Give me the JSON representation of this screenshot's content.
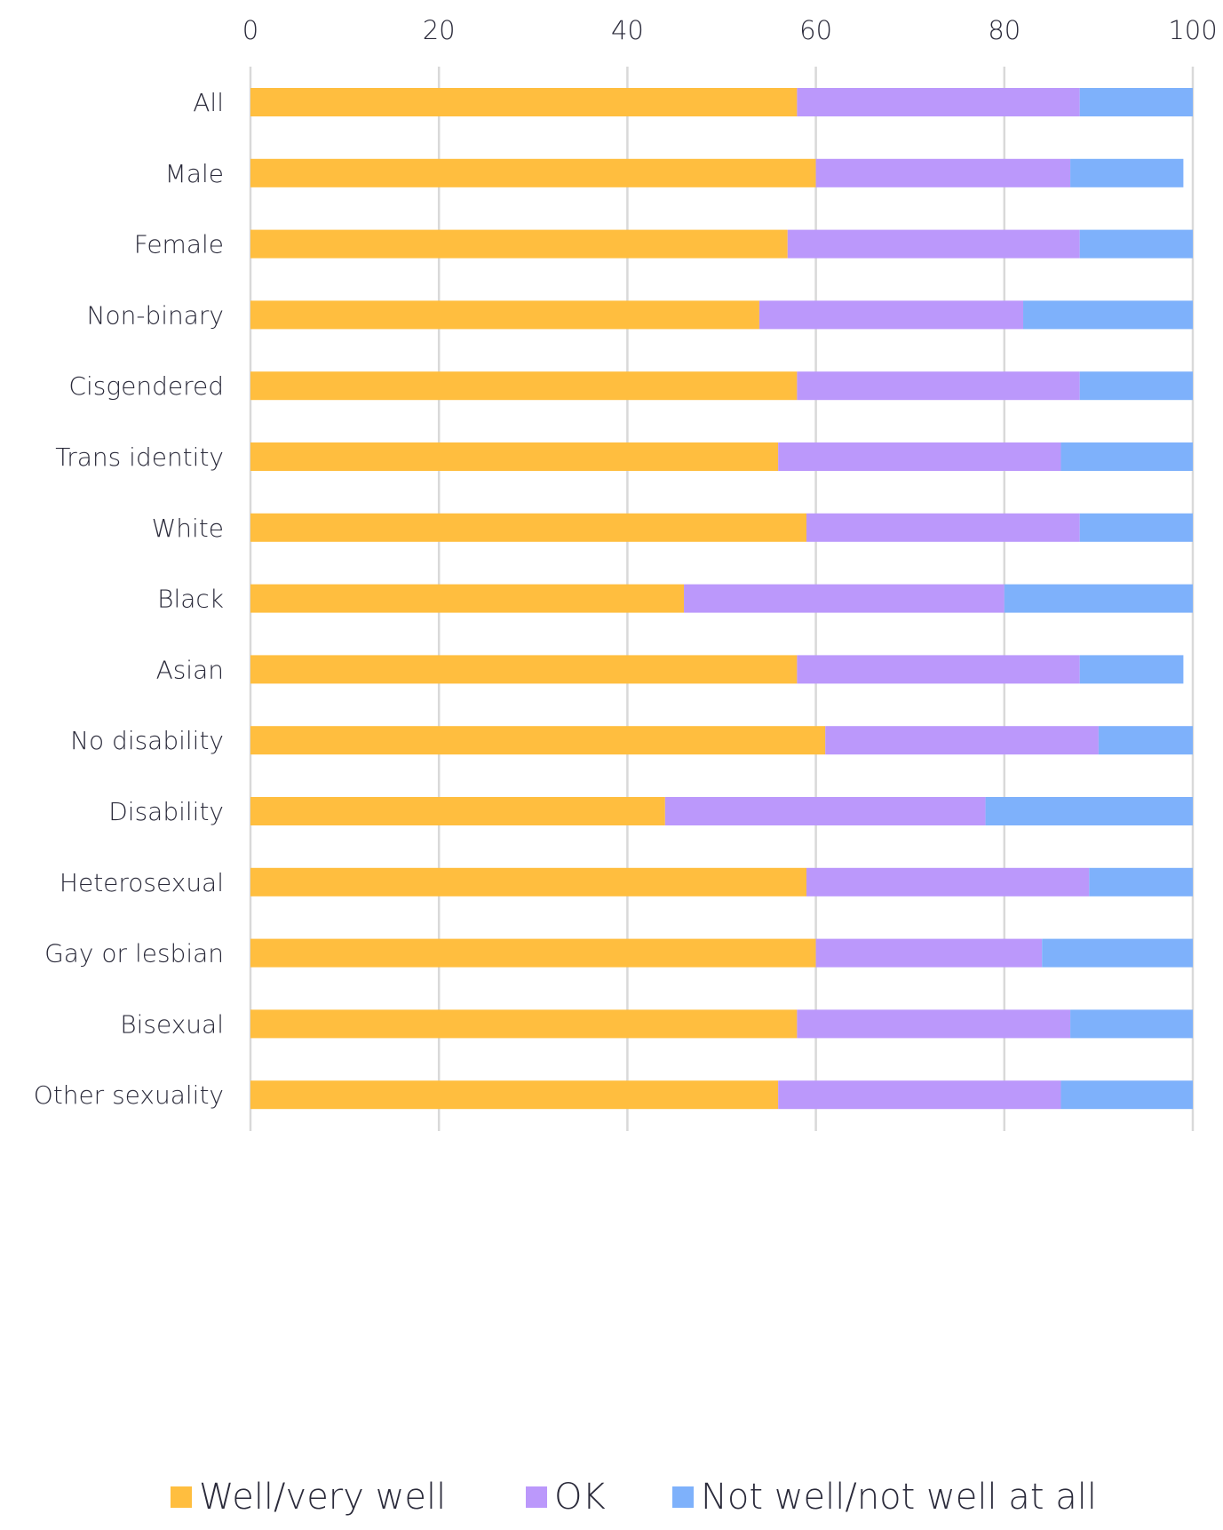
{
  "chart_data": {
    "type": "bar",
    "orientation": "horizontal",
    "stacked": true,
    "title": "",
    "xlabel": "",
    "ylabel": "",
    "xlim": [
      0,
      100
    ],
    "xticks": [
      "0",
      "20",
      "40",
      "60",
      "80",
      "100"
    ],
    "x_axis_position": "top",
    "grid": "vertical",
    "legend_position": "bottom",
    "categories": [
      "All",
      "Male",
      "Female",
      "Non-binary",
      "Cisgendered",
      "Trans identity",
      "White",
      "Black",
      "Asian",
      "No disability",
      "Disability",
      "Heterosexual",
      "Gay or lesbian",
      "Bisexual",
      "Other sexuality"
    ],
    "series": [
      {
        "name": "Well/very well",
        "color": "#ffbe3f",
        "values": [
          58,
          60,
          57,
          54,
          58,
          56,
          59,
          46,
          58,
          61,
          44,
          59,
          60,
          58,
          56
        ]
      },
      {
        "name": "OK",
        "color": "#bb98fb",
        "values": [
          30,
          27,
          31,
          28,
          30,
          30,
          29,
          34,
          30,
          29,
          34,
          30,
          24,
          29,
          30
        ]
      },
      {
        "name": "Not well/not well at all",
        "color": "#7eb1fb",
        "values": [
          12,
          12,
          12,
          18,
          12,
          14,
          12,
          20,
          11,
          10,
          22,
          11,
          16,
          13,
          14
        ]
      }
    ]
  }
}
